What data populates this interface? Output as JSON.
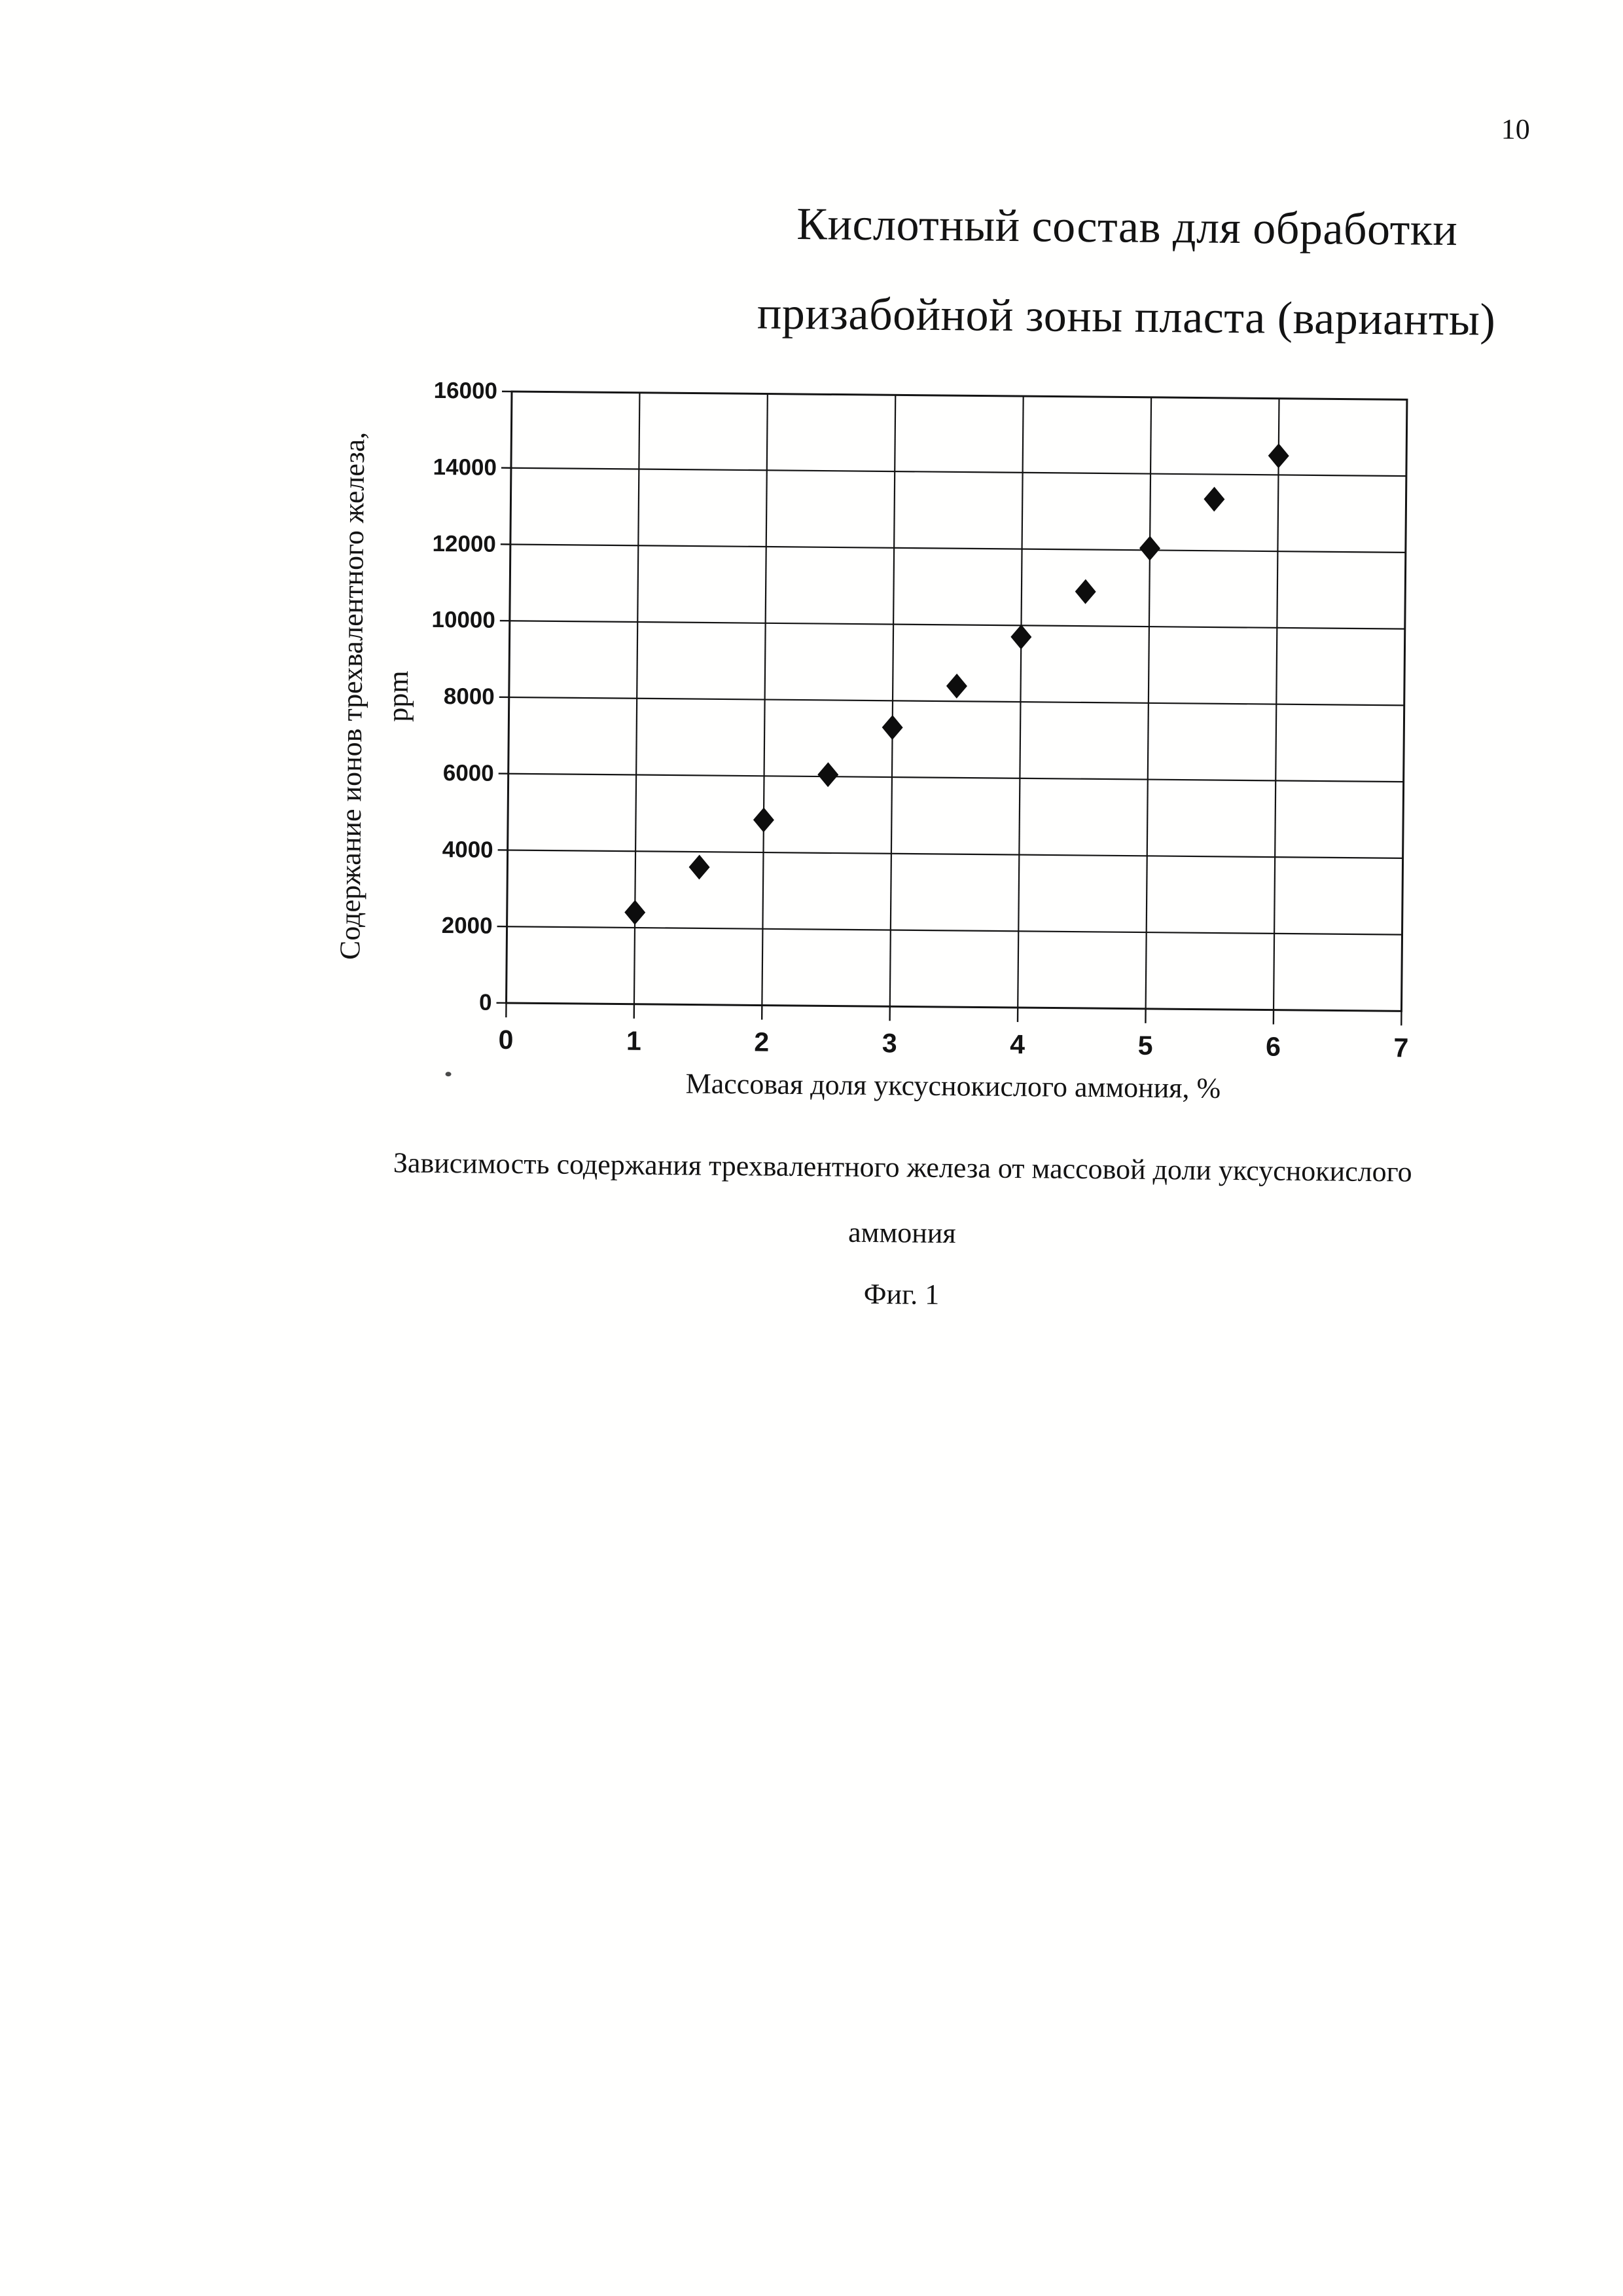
{
  "page": {
    "number": "10"
  },
  "figure": {
    "title_line1": "Кислотный состав для обработки",
    "title_line2": "призабойной зоны пласта (варианты)",
    "caption_line1": "Зависимость содержания трехвалентного железа от массовой доли уксуснокислого",
    "caption_line2": "аммония",
    "fig_label": "Фиг. 1"
  },
  "chart_data": {
    "type": "scatter",
    "x": [
      1,
      1.5,
      2,
      2.5,
      3,
      3.5,
      4,
      4.5,
      5,
      5.5,
      6
    ],
    "y": [
      2400,
      3600,
      4850,
      6050,
      7300,
      8400,
      9700,
      10900,
      12050,
      13350,
      14500
    ],
    "xlabel": "Массовая доля уксуснокислого аммония, %",
    "ylabel_line1": "Содержание ионов трехвалентного железа,",
    "ylabel_line2": "ppm",
    "xlim": [
      0,
      7
    ],
    "ylim": [
      0,
      16000
    ],
    "xticks": [
      0,
      1,
      2,
      3,
      4,
      5,
      6,
      7
    ],
    "yticks": [
      0,
      2000,
      4000,
      6000,
      8000,
      10000,
      12000,
      14000,
      16000
    ],
    "grid": true,
    "legend": "none",
    "marker": "diamond",
    "marker_color": "#0d0d0d",
    "line_color": "#141414"
  }
}
